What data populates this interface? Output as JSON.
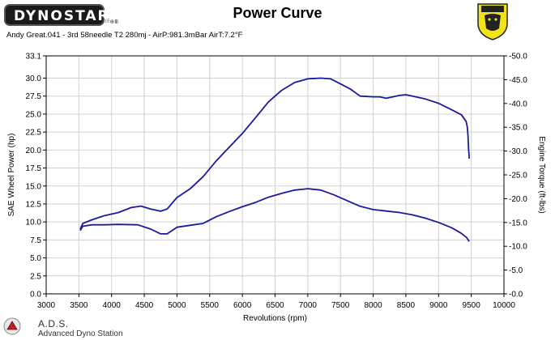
{
  "header": {
    "logo_text": "DYNOSTAR",
    "logo_small": "ᴸᴱ⊕Ⅲ",
    "title": "Power Curve",
    "subtitle": "Andy Great.041 - 3rd 58needle T2 280mj  - AirP:981.3mBar AirT:7.2°F"
  },
  "footer": {
    "brand": "A.D.S.",
    "brand_sub": "Advanced Dyno Station"
  },
  "colors": {
    "series": "#1a1a9a",
    "grid": "#d0d0d0",
    "crest_yellow": "#f2e21a"
  },
  "chart_data": {
    "type": "line",
    "xlabel": "Revolutions (rpm)",
    "ylabel": "SAE Wheel Power (hp)",
    "y2label": "Engine Torque (ft-lbs)",
    "xlim": [
      3000,
      10000
    ],
    "ylim": [
      0,
      33.1
    ],
    "y2lim": [
      0,
      -50
    ],
    "x_ticks": [
      "3000",
      "3500",
      "4000",
      "4500",
      "5000",
      "5500",
      "6000",
      "6500",
      "7000",
      "7500",
      "8000",
      "8500",
      "9000",
      "9500",
      "10000"
    ],
    "y_ticks": [
      "0.0",
      "2.5",
      "5.0",
      "7.5",
      "10.0",
      "12.5",
      "15.0",
      "17.5",
      "20.0",
      "22.5",
      "25.0",
      "27.5",
      "30.0",
      "33.1"
    ],
    "y_tick_values": [
      0,
      2.5,
      5,
      7.5,
      10,
      12.5,
      15,
      17.5,
      20,
      22.5,
      25,
      27.5,
      30,
      33.1
    ],
    "y2_ticks": [
      "-0.0",
      "-5.0",
      "-10.0",
      "-15.0",
      "-20.0",
      "-25.0",
      "-30.0",
      "-35.0",
      "-40.0",
      "-45.0",
      "-50.0"
    ],
    "y2_tick_values": [
      0,
      -5,
      -10,
      -15,
      -20,
      -25,
      -30,
      -35,
      -40,
      -45,
      -50
    ],
    "grid": true,
    "series": [
      {
        "axis": "left",
        "x": [
          3520,
          3560,
          3700,
          3900,
          4100,
          4300,
          4450,
          4600,
          4750,
          4850,
          5000,
          5200,
          5400,
          5600,
          5800,
          6000,
          6200,
          6400,
          6600,
          6800,
          7000,
          7200,
          7350,
          7500,
          7650,
          7800,
          8000,
          8100,
          8200,
          8300,
          8400,
          8500,
          8600,
          8800,
          9000,
          9200,
          9350,
          9420,
          9440,
          9450,
          9460,
          9470
        ],
        "y": [
          9.0,
          9.8,
          10.3,
          10.9,
          11.3,
          12.0,
          12.2,
          11.8,
          11.5,
          11.8,
          13.4,
          14.6,
          16.3,
          18.5,
          20.4,
          22.3,
          24.5,
          26.7,
          28.3,
          29.4,
          29.9,
          30.0,
          29.9,
          29.2,
          28.5,
          27.5,
          27.4,
          27.4,
          27.2,
          27.4,
          27.6,
          27.7,
          27.5,
          27.1,
          26.5,
          25.6,
          24.9,
          24.0,
          23.2,
          22.0,
          20.0,
          18.8
        ]
      },
      {
        "axis": "right",
        "x": [
          3520,
          3560,
          3700,
          3900,
          4100,
          4400,
          4600,
          4750,
          4850,
          5000,
          5200,
          5400,
          5600,
          5800,
          6000,
          6200,
          6400,
          6600,
          6800,
          7000,
          7200,
          7400,
          7600,
          7800,
          8000,
          8200,
          8400,
          8600,
          8800,
          9000,
          9200,
          9350,
          9430,
          9470
        ],
        "y": [
          -13.3,
          -14.2,
          -14.5,
          -14.5,
          -14.6,
          -14.5,
          -13.6,
          -12.6,
          -12.6,
          -14.0,
          -14.4,
          -14.8,
          -16.2,
          -17.3,
          -18.3,
          -19.2,
          -20.3,
          -21.1,
          -21.8,
          -22.1,
          -21.8,
          -20.8,
          -19.6,
          -18.4,
          -17.7,
          -17.4,
          -17.1,
          -16.6,
          -15.9,
          -15.0,
          -13.9,
          -12.7,
          -11.8,
          -11.0
        ]
      }
    ]
  }
}
